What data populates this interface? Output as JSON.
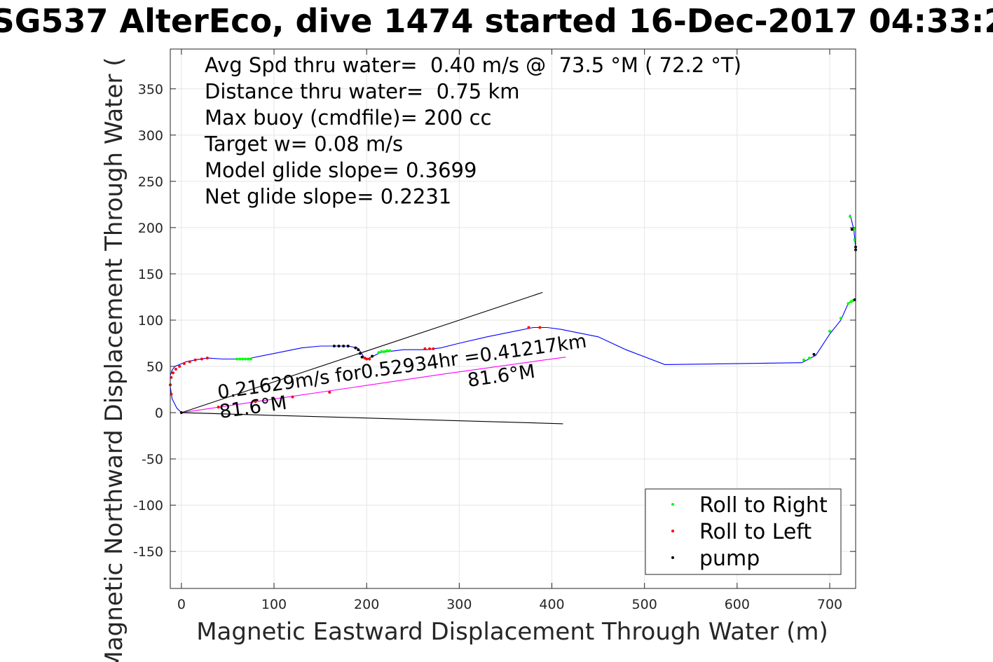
{
  "chart_data": {
    "type": "line",
    "title": "SG537 AlterEco, dive 1474 started 16-Dec-2017 04:33:2",
    "xlabel": "Magnetic Eastward Displacement Through Water (m)",
    "ylabel": "Magnetic Northward Displacement Through Water (",
    "xlim": [
      -12,
      728
    ],
    "ylim": [
      -190,
      393
    ],
    "x_ticks": [
      "0",
      "100",
      "200",
      "300",
      "400",
      "500",
      "600",
      "700"
    ],
    "x_tick_values": [
      0,
      100,
      200,
      300,
      400,
      500,
      600,
      700
    ],
    "y_ticks": [
      "350",
      "300",
      "250",
      "200",
      "150",
      "100",
      "50",
      "0",
      "-50",
      "-100",
      "-150"
    ],
    "y_tick_values": [
      350,
      300,
      250,
      200,
      150,
      100,
      50,
      0,
      -50,
      -100,
      -150
    ],
    "grid": true,
    "info_lines": [
      "Avg Spd thru water=  0.40 m/s @  73.5 °M ( 72.2 °T)",
      "Distance thru water=  0.75 km",
      "Max buoy (cmdfile)= 200 cc",
      "Target w= 0.08 m/s",
      "Model glide slope= 0.3699",
      "Net glide slope= 0.2231"
    ],
    "annotations": [
      {
        "text": "0.21629m/s for0.52934hr =0.41217km",
        "x": 40,
        "y": 15,
        "rotation_deg": -8
      },
      {
        "text": "81.6°M",
        "x": 310,
        "y": 28,
        "rotation_deg": -8
      },
      {
        "text": "81.6°M",
        "x": 42,
        "y": -6,
        "rotation_deg": -8
      }
    ],
    "series": [
      {
        "name": "",
        "color": "#0000ff",
        "style": "line",
        "x": [
          0,
          -5,
          -10,
          -12,
          -12,
          -10,
          -7,
          -2,
          5,
          15,
          28,
          45,
          70,
          90,
          110,
          130,
          150,
          165,
          180,
          190,
          194,
          197,
          200,
          205,
          215,
          240,
          265,
          280,
          300,
          330,
          360,
          380,
          395,
          410,
          450,
          480,
          522,
          600,
          670,
          685,
          700,
          712,
          720,
          725,
          728,
          728,
          726,
          722
        ],
        "y": [
          0,
          5,
          15,
          28,
          40,
          46,
          50,
          52,
          55,
          57,
          59,
          58,
          58,
          62,
          66,
          70,
          72,
          72,
          72,
          70,
          65,
          60,
          58,
          60,
          65,
          68,
          68,
          70,
          75,
          82,
          88,
          92,
          92,
          90,
          82,
          68,
          52,
          53,
          54,
          62,
          85,
          100,
          118,
          122,
          122,
          178,
          198,
          214
        ]
      },
      {
        "name": "",
        "color": "#ff00ff",
        "style": "line",
        "x": [
          0,
          95,
          190,
          285,
          385,
          415
        ],
        "y": [
          0,
          14,
          28,
          42,
          56,
          60
        ]
      },
      {
        "name": "",
        "color": "#000000",
        "style": "line",
        "x": [
          0,
          390
        ],
        "y": [
          0,
          130
        ]
      },
      {
        "name": "",
        "color": "#000000",
        "style": "line",
        "x": [
          0,
          412
        ],
        "y": [
          0,
          -12
        ]
      },
      {
        "name": "Roll to Right",
        "color": "#00ff00",
        "style": "markers",
        "x": [
          60,
          63,
          66,
          69,
          72,
          75,
          213,
          216,
          219,
          222,
          225,
          672,
          678,
          700,
          712,
          720,
          723,
          725,
          727,
          726,
          722
        ],
        "y": [
          58,
          58,
          58,
          58,
          58,
          58,
          65,
          66,
          66,
          67,
          67,
          57,
          59,
          88,
          102,
          118,
          120,
          121,
          187,
          198,
          212
        ]
      },
      {
        "name": "Roll to Left",
        "color": "#ff0000",
        "style": "markers",
        "x": [
          -11,
          -12,
          -11,
          -9,
          -6,
          -2,
          3,
          9,
          15,
          22,
          28,
          198,
          200,
          203,
          263,
          268,
          272,
          375,
          387,
          40,
          80,
          120,
          160
        ],
        "y": [
          20,
          30,
          38,
          43,
          47,
          50,
          53,
          55,
          57,
          58,
          59,
          59,
          58,
          58,
          69,
          69,
          69,
          92,
          92,
          6,
          12,
          17,
          22
        ]
      },
      {
        "name": "pump",
        "color": "#000000",
        "style": "markers",
        "x": [
          0,
          165,
          170,
          175,
          180,
          188,
          191,
          193,
          195,
          206,
          683,
          727,
          728,
          728,
          724
        ],
        "y": [
          0,
          72,
          72,
          72,
          72,
          70,
          68,
          64,
          60,
          61,
          63,
          122,
          176,
          179,
          198
        ]
      }
    ],
    "legend": {
      "position": "bottom-right",
      "entries": [
        {
          "label": "Roll to Right",
          "color": "#00ff00"
        },
        {
          "label": "Roll to Left",
          "color": "#ff0000"
        },
        {
          "label": "pump",
          "color": "#000000"
        }
      ]
    }
  }
}
